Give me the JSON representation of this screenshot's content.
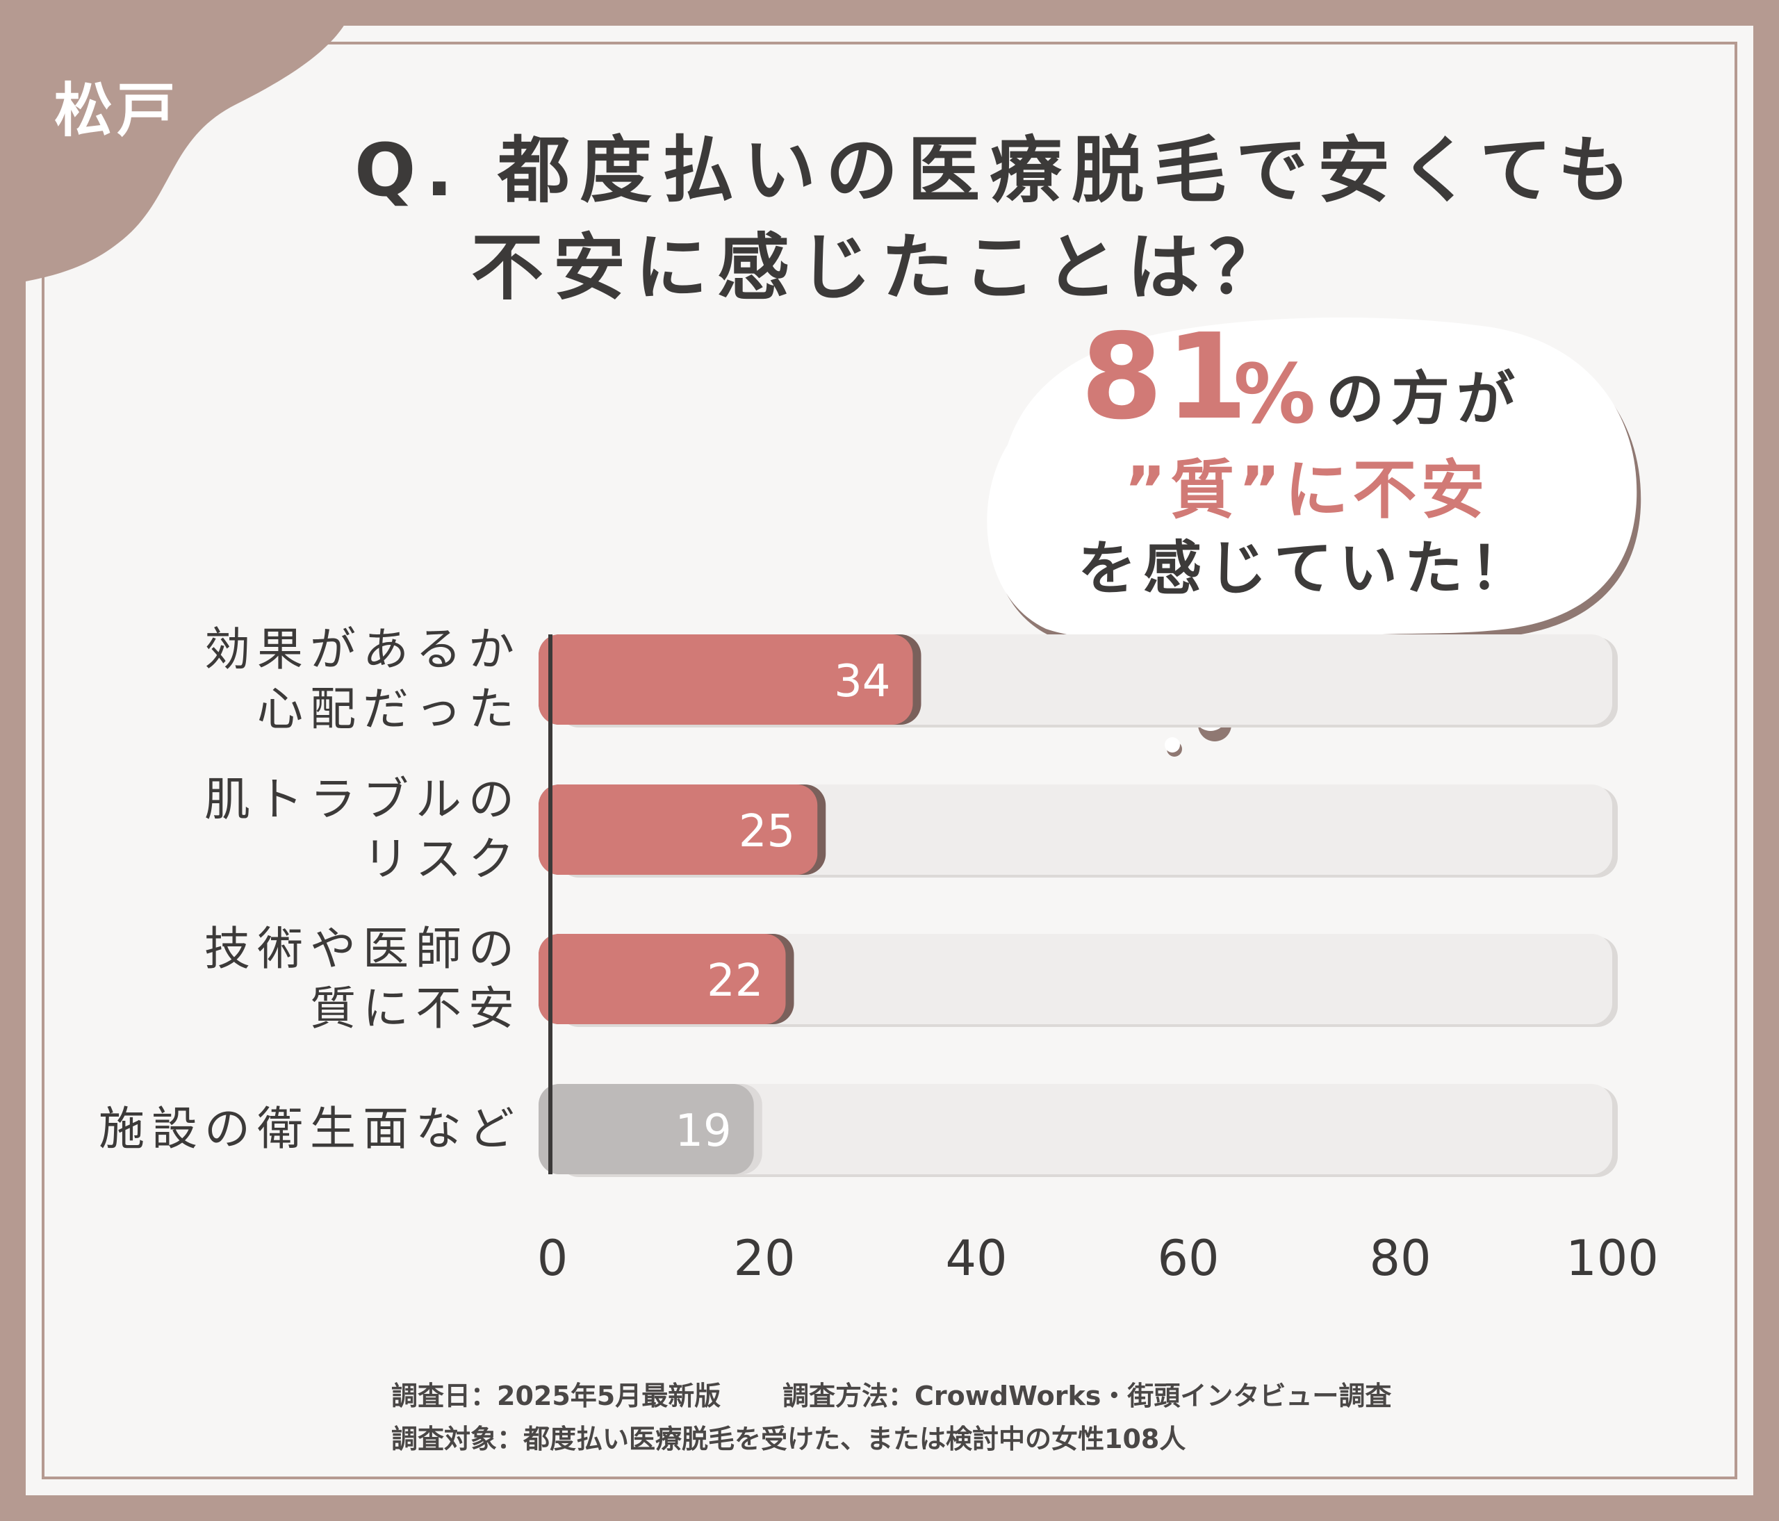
{
  "tag": {
    "location": "松戸"
  },
  "title": {
    "line1": "Q. 都度払いの医療脱毛で安くても",
    "line2": "不安に感じたことは？"
  },
  "callout": {
    "big_number": "81",
    "percent_sign": "%",
    "suffix": "の方が",
    "line2": "”質”に不安",
    "line3": "を感じていた！"
  },
  "colors": {
    "frame": "#b59a91",
    "highlight_bar": "#d17a76",
    "other_bar": "#bdbab9",
    "track": "#efedec",
    "text": "#3c3a39"
  },
  "chart_data": {
    "type": "bar",
    "orientation": "horizontal",
    "categories": [
      [
        "効果があるか",
        "心配だった"
      ],
      [
        "肌トラブルの",
        "リスク"
      ],
      [
        "技術や医師の",
        "質に不安"
      ],
      [
        "施設の衛生面など"
      ]
    ],
    "values": [
      34,
      25,
      22,
      19
    ],
    "highlighted": [
      true,
      true,
      true,
      false
    ],
    "xlim": [
      0,
      100
    ],
    "xticks": [
      "0",
      "20",
      "40",
      "60",
      "80",
      "100"
    ],
    "grid": false,
    "legend": "none"
  },
  "footer": {
    "date": "調査日：2025年5月最新版",
    "method": "調査方法：CrowdWorks・街頭インタビュー調査",
    "target": "調査対象：都度払い医療脱毛を受けた、または検討中の女性108人"
  }
}
